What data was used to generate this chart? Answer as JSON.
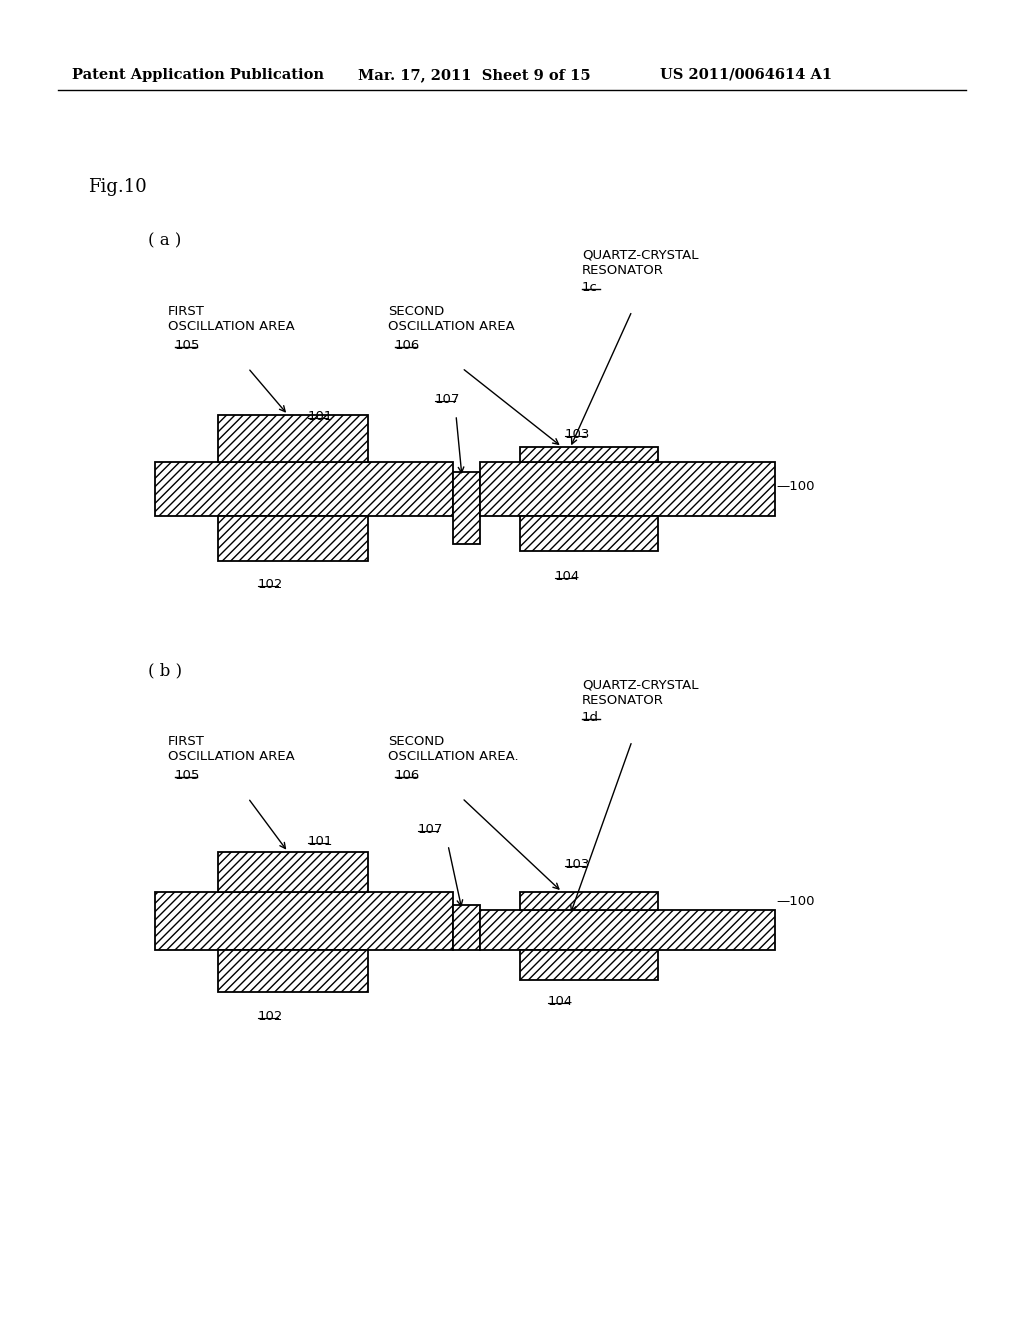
{
  "bg_color": "#ffffff",
  "header_left": "Patent Application Publication",
  "header_mid": "Mar. 17, 2011  Sheet 9 of 15",
  "header_right": "US 2011/0064614 A1",
  "fig_label": "Fig.10",
  "hatch_pattern": "////",
  "line_color": "#000000"
}
